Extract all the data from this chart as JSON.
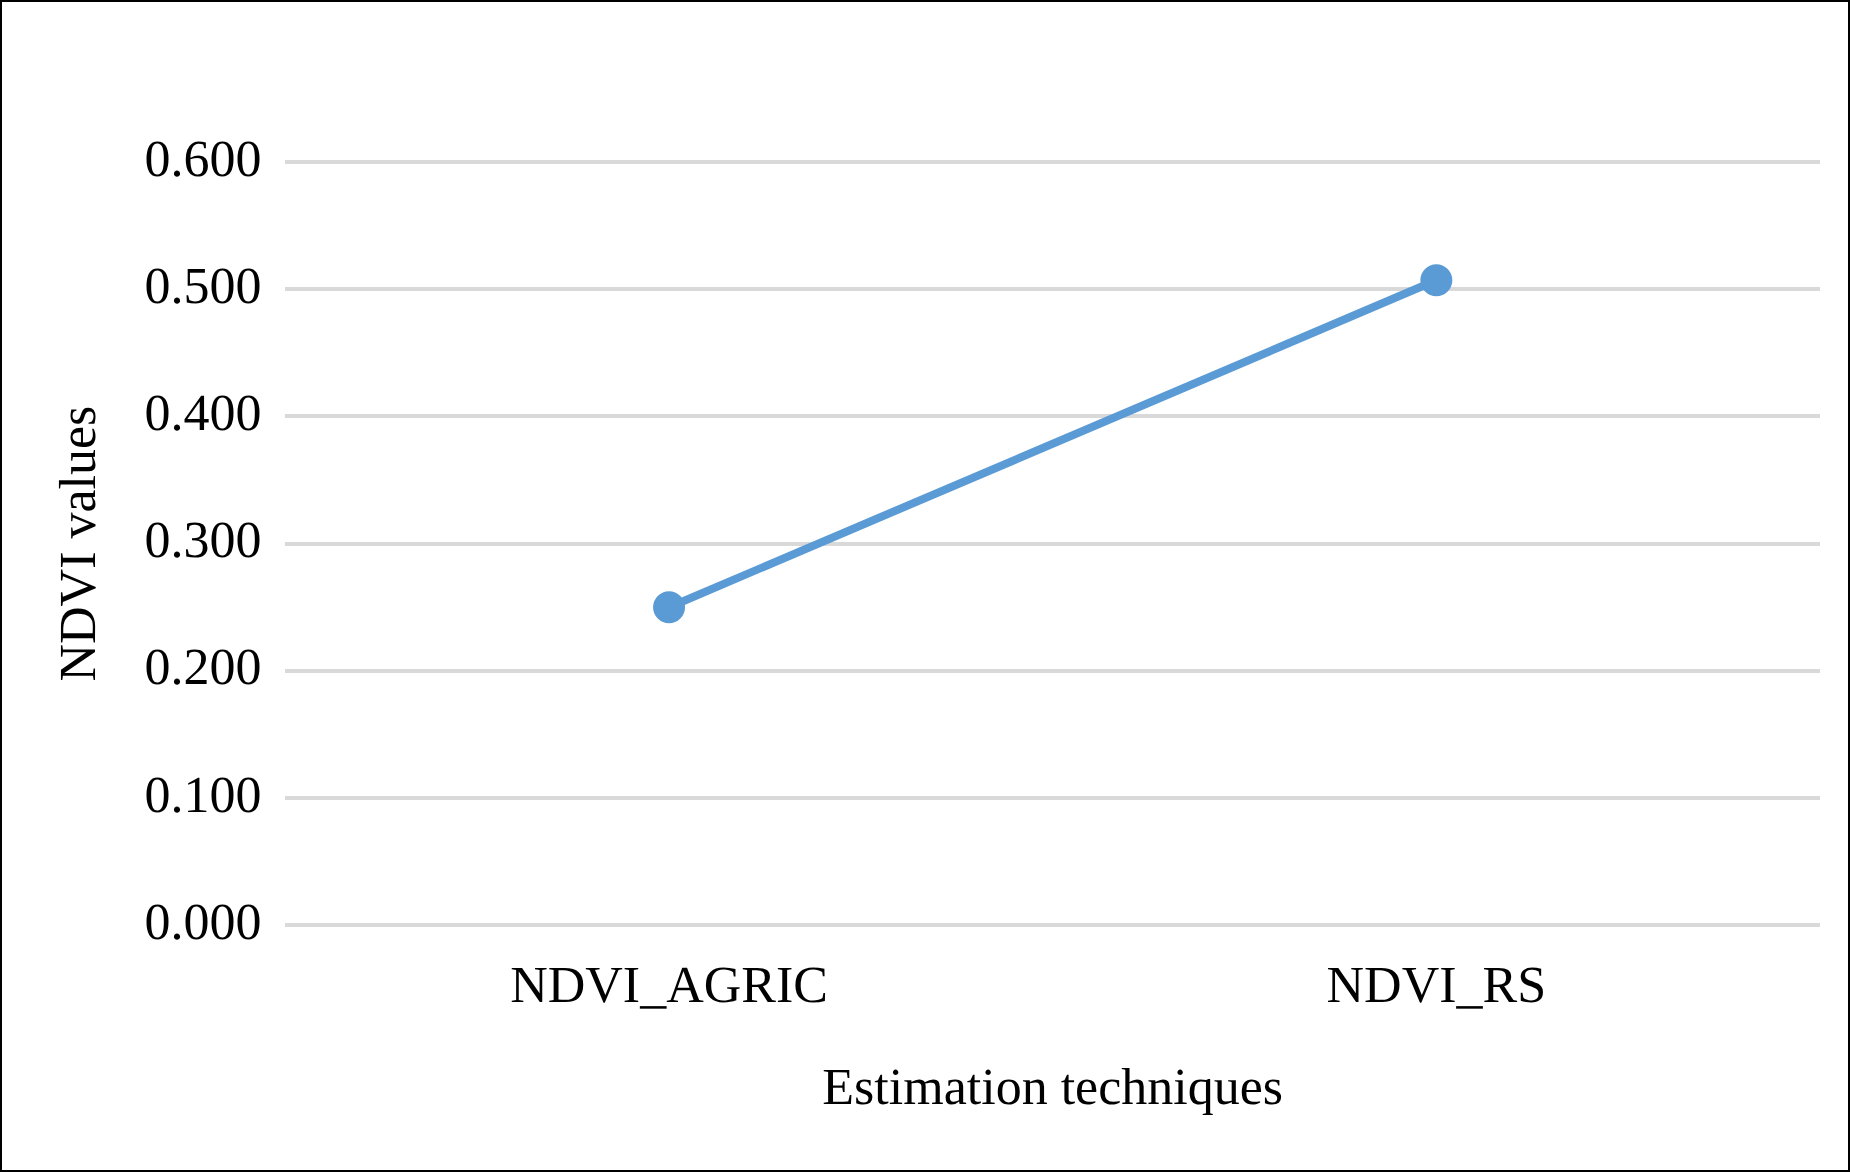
{
  "chart_data": {
    "type": "line",
    "xlabel": "Estimation techniques",
    "ylabel": "NDVI values",
    "categories": [
      "NDVI_AGRIC",
      "NDVI_RS"
    ],
    "series": [
      {
        "color": "#5b9bd5",
        "values": [
          0.25,
          0.507
        ]
      }
    ],
    "ylim": [
      0,
      0.6
    ],
    "yticks": [
      {
        "value": 0,
        "label": "0.000"
      },
      {
        "value": 0.1,
        "label": "0.100"
      },
      {
        "value": 0.2,
        "label": "0.200"
      },
      {
        "value": 0.3,
        "label": "0.300"
      },
      {
        "value": 0.4,
        "label": "0.400"
      },
      {
        "value": 0.5,
        "label": "0.500"
      },
      {
        "value": 0.6,
        "label": "0.600"
      }
    ],
    "grid": "y",
    "legend": false,
    "marker": "circle",
    "line_style": "solid"
  }
}
